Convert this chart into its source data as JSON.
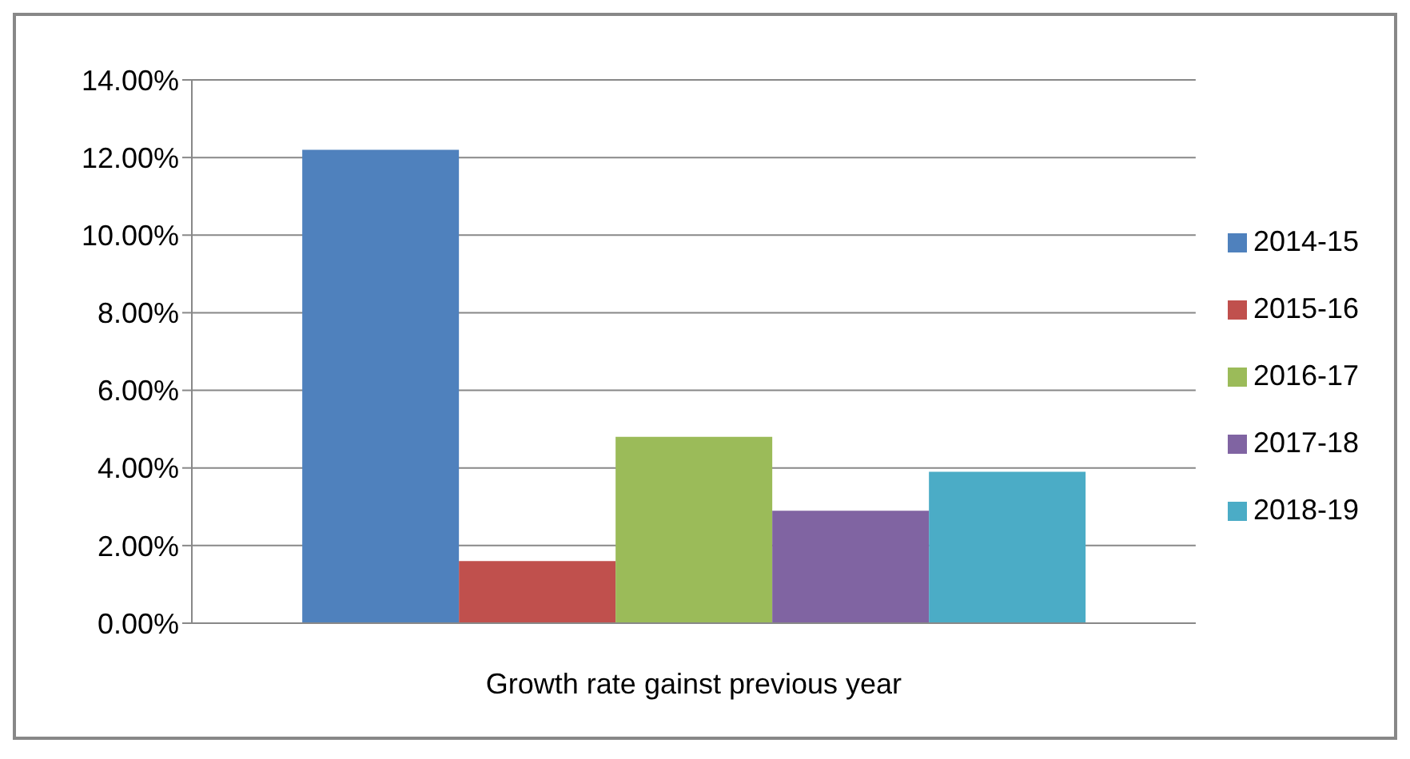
{
  "chart_data": {
    "type": "bar",
    "categories": [
      "Growth rate gainst previous year"
    ],
    "series": [
      {
        "name": "2014-15",
        "color": "#4f81bd",
        "values": [
          12.2
        ]
      },
      {
        "name": "2015-16",
        "color": "#c0504d",
        "values": [
          1.6
        ]
      },
      {
        "name": "2016-17",
        "color": "#9bbb59",
        "values": [
          4.8
        ]
      },
      {
        "name": "2017-18",
        "color": "#8064a2",
        "values": [
          2.9
        ]
      },
      {
        "name": "2018-19",
        "color": "#4bacc6",
        "values": [
          3.9
        ]
      }
    ],
    "ylim": [
      0,
      14
    ],
    "yticks": [
      {
        "value": 0,
        "label": "0.00%"
      },
      {
        "value": 2,
        "label": "2.00%"
      },
      {
        "value": 4,
        "label": "4.00%"
      },
      {
        "value": 6,
        "label": "6.00%"
      },
      {
        "value": 8,
        "label": "8.00%"
      },
      {
        "value": 10,
        "label": "10.00%"
      },
      {
        "value": 12,
        "label": "12.00%"
      },
      {
        "value": 14,
        "label": "14.00%"
      }
    ],
    "grid": "y",
    "legend": "right"
  }
}
